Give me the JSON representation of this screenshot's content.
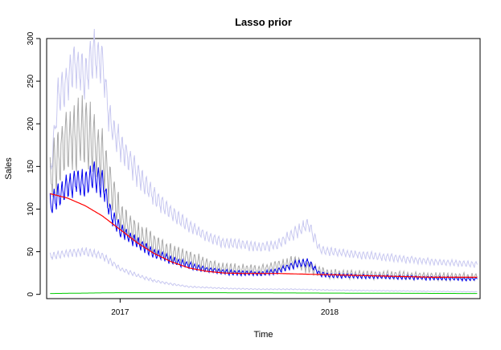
{
  "chart_data": {
    "type": "line",
    "title": "Lasso prior",
    "xlabel": "Time",
    "ylabel": "Sales",
    "x_range": [
      "2016-08-26",
      "2018-09-20"
    ],
    "ylim": [
      -5,
      300
    ],
    "x_ticks": [
      {
        "date": "2017-01-01",
        "label": "2017"
      },
      {
        "date": "2018-01-01",
        "label": "2018"
      }
    ],
    "y_ticks": [
      0,
      50,
      100,
      150,
      200,
      250,
      300
    ],
    "grid": false,
    "legend": "none",
    "series": [
      {
        "role": "upper-interval",
        "color": "#c8c8f0",
        "points": [
          [
            "2016-09-01",
            140
          ],
          [
            "2016-09-15",
            230
          ],
          [
            "2016-10-01",
            250
          ],
          [
            "2016-10-15",
            270
          ],
          [
            "2016-11-01",
            255
          ],
          [
            "2016-11-15",
            285
          ],
          [
            "2016-12-01",
            270
          ],
          [
            "2016-12-15",
            200
          ],
          [
            "2017-01-01",
            175
          ],
          [
            "2017-02-01",
            140
          ],
          [
            "2017-03-01",
            115
          ],
          [
            "2017-04-01",
            95
          ],
          [
            "2017-05-01",
            80
          ],
          [
            "2017-06-01",
            68
          ],
          [
            "2017-07-01",
            60
          ],
          [
            "2017-08-01",
            58
          ],
          [
            "2017-09-01",
            55
          ],
          [
            "2017-10-01",
            58
          ],
          [
            "2017-11-01",
            72
          ],
          [
            "2017-11-25",
            82
          ],
          [
            "2017-12-15",
            52
          ],
          [
            "2018-01-01",
            50
          ],
          [
            "2018-03-01",
            46
          ],
          [
            "2018-05-01",
            42
          ],
          [
            "2018-07-01",
            38
          ],
          [
            "2018-09-15",
            35
          ]
        ]
      },
      {
        "role": "lower-interval",
        "color": "#c8c8f0",
        "points": [
          [
            "2016-09-01",
            45
          ],
          [
            "2016-10-01",
            48
          ],
          [
            "2016-11-01",
            50
          ],
          [
            "2016-12-01",
            45
          ],
          [
            "2017-01-01",
            30
          ],
          [
            "2017-02-01",
            22
          ],
          [
            "2017-03-01",
            16
          ],
          [
            "2017-04-01",
            12
          ],
          [
            "2017-05-01",
            9
          ],
          [
            "2017-07-01",
            7
          ],
          [
            "2017-09-01",
            6
          ],
          [
            "2017-11-01",
            6
          ],
          [
            "2018-01-01",
            5
          ],
          [
            "2018-05-01",
            4
          ],
          [
            "2018-09-15",
            3
          ]
        ]
      },
      {
        "role": "observed",
        "color": "#a9a9a9",
        "points": [
          [
            "2016-09-01",
            140
          ],
          [
            "2016-10-01",
            180
          ],
          [
            "2016-11-01",
            190
          ],
          [
            "2016-12-01",
            160
          ],
          [
            "2017-01-01",
            90
          ],
          [
            "2017-02-01",
            70
          ],
          [
            "2017-03-01",
            58
          ],
          [
            "2017-04-01",
            48
          ],
          [
            "2017-05-01",
            42
          ],
          [
            "2017-06-01",
            35
          ],
          [
            "2017-07-01",
            30
          ],
          [
            "2017-09-01",
            28
          ],
          [
            "2017-11-01",
            38
          ],
          [
            "2017-12-01",
            30
          ],
          [
            "2018-01-01",
            24
          ],
          [
            "2018-05-01",
            22
          ],
          [
            "2018-09-15",
            20
          ]
        ]
      },
      {
        "role": "fitted",
        "color": "#0000ee",
        "points": [
          [
            "2016-09-01",
            105
          ],
          [
            "2016-09-15",
            115
          ],
          [
            "2016-10-01",
            125
          ],
          [
            "2016-10-15",
            132
          ],
          [
            "2016-11-01",
            128
          ],
          [
            "2016-11-15",
            138
          ],
          [
            "2016-12-01",
            130
          ],
          [
            "2016-12-15",
            95
          ],
          [
            "2017-01-01",
            75
          ],
          [
            "2017-02-01",
            60
          ],
          [
            "2017-03-01",
            48
          ],
          [
            "2017-04-01",
            40
          ],
          [
            "2017-05-01",
            34
          ],
          [
            "2017-06-01",
            29
          ],
          [
            "2017-07-01",
            26
          ],
          [
            "2017-08-01",
            25
          ],
          [
            "2017-09-01",
            24
          ],
          [
            "2017-10-01",
            27
          ],
          [
            "2017-11-01",
            35
          ],
          [
            "2017-11-25",
            38
          ],
          [
            "2017-12-15",
            24
          ],
          [
            "2018-01-01",
            22
          ],
          [
            "2018-03-01",
            21
          ],
          [
            "2018-05-01",
            20
          ],
          [
            "2018-07-01",
            19
          ],
          [
            "2018-09-15",
            18
          ]
        ]
      },
      {
        "role": "trend",
        "color": "#ff0000",
        "points": [
          [
            "2016-09-01",
            118
          ],
          [
            "2016-10-01",
            113
          ],
          [
            "2016-11-01",
            104
          ],
          [
            "2016-12-01",
            92
          ],
          [
            "2017-01-01",
            76
          ],
          [
            "2017-02-01",
            60
          ],
          [
            "2017-03-01",
            48
          ],
          [
            "2017-04-01",
            38
          ],
          [
            "2017-05-01",
            31
          ],
          [
            "2017-06-01",
            27
          ],
          [
            "2017-07-01",
            25
          ],
          [
            "2017-08-01",
            24.5
          ],
          [
            "2017-09-01",
            24.5
          ],
          [
            "2017-10-01",
            24.5
          ],
          [
            "2017-11-01",
            24
          ],
          [
            "2017-12-01",
            23.5
          ],
          [
            "2018-01-01",
            23
          ],
          [
            "2018-03-01",
            22
          ],
          [
            "2018-05-01",
            21
          ],
          [
            "2018-07-01",
            20
          ],
          [
            "2018-09-15",
            20
          ]
        ]
      },
      {
        "role": "baseline",
        "color": "#00cc00",
        "points": [
          [
            "2016-09-01",
            1
          ],
          [
            "2017-01-01",
            2
          ],
          [
            "2017-06-01",
            2
          ],
          [
            "2018-01-01",
            1.5
          ],
          [
            "2018-09-15",
            1
          ]
        ]
      }
    ]
  }
}
